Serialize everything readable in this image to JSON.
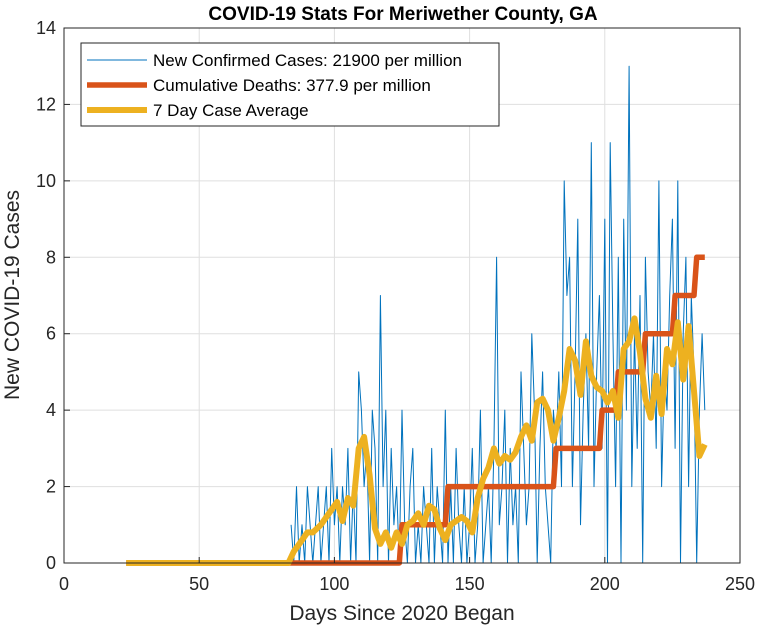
{
  "chart_data": {
    "type": "line",
    "title": "COVID-19 Stats For Meriwether County, GA",
    "xlabel": "Days Since 2020 Began",
    "ylabel": "New COVID-19 Cases",
    "xlim": [
      0,
      250
    ],
    "ylim": [
      0,
      14
    ],
    "xticks": [
      0,
      50,
      100,
      150,
      200,
      250
    ],
    "yticks": [
      0,
      2,
      4,
      6,
      8,
      10,
      12,
      14
    ],
    "grid": true,
    "legend_position": "top-left",
    "series": [
      {
        "name": "New Confirmed Cases: 21900 per million",
        "color": "#0072BD",
        "x": [
          84,
          85,
          86,
          87,
          88,
          89,
          90,
          91,
          92,
          93,
          94,
          95,
          96,
          97,
          98,
          99,
          100,
          101,
          102,
          103,
          104,
          105,
          106,
          107,
          108,
          109,
          110,
          111,
          112,
          113,
          114,
          115,
          116,
          117,
          118,
          119,
          120,
          121,
          122,
          123,
          124,
          125,
          126,
          127,
          128,
          129,
          130,
          131,
          132,
          133,
          134,
          135,
          136,
          137,
          138,
          139,
          140,
          141,
          142,
          143,
          144,
          145,
          146,
          147,
          148,
          149,
          150,
          151,
          152,
          153,
          154,
          155,
          156,
          157,
          158,
          159,
          160,
          161,
          162,
          163,
          164,
          165,
          166,
          167,
          168,
          169,
          170,
          171,
          172,
          173,
          174,
          175,
          176,
          177,
          178,
          179,
          180,
          181,
          182,
          183,
          184,
          185,
          186,
          187,
          188,
          189,
          190,
          191,
          192,
          193,
          194,
          195,
          196,
          197,
          198,
          199,
          200,
          201,
          202,
          203,
          204,
          205,
          206,
          207,
          208,
          209,
          210,
          211,
          212,
          213,
          214,
          215,
          216,
          217,
          218,
          219,
          220,
          221,
          222,
          223,
          224,
          225,
          226,
          227,
          228,
          229,
          230,
          231,
          232,
          233,
          234,
          235,
          236,
          237
        ],
        "values": [
          1,
          0,
          2,
          0,
          1,
          0,
          2,
          1,
          0,
          1,
          2,
          0,
          1,
          2,
          0,
          3,
          1,
          2,
          0,
          2,
          1,
          3,
          0,
          2,
          0,
          5,
          4,
          2,
          3,
          0,
          4,
          3,
          0,
          7,
          2,
          4,
          0,
          3,
          1,
          2,
          0,
          4,
          1,
          0,
          2,
          3,
          0,
          1,
          0,
          2,
          1,
          0,
          3,
          0,
          2,
          1,
          0,
          4,
          0,
          2,
          0,
          3,
          1,
          0,
          2,
          0,
          1,
          3,
          0,
          1,
          4,
          0,
          1,
          2,
          0,
          3,
          8,
          1,
          2,
          4,
          0,
          3,
          1,
          2,
          0,
          5,
          3,
          1,
          2,
          6,
          4,
          0,
          3,
          5,
          2,
          1,
          0,
          4,
          3,
          5,
          2,
          10,
          7,
          8,
          2,
          5,
          9,
          1,
          4,
          6,
          3,
          11,
          2,
          5,
          7,
          3,
          9,
          0,
          11,
          6,
          2,
          8,
          0,
          9,
          4,
          13,
          2,
          6,
          3,
          7,
          0,
          8,
          5,
          4,
          6,
          3,
          10,
          2,
          5,
          4,
          7,
          9,
          3,
          10,
          0,
          6,
          8,
          2,
          7,
          5,
          0,
          4,
          6,
          4
        ]
      },
      {
        "name": "Cumulative Deaths: 377.9 per million",
        "color": "#D95319",
        "x": [
          23,
          124,
          125,
          141,
          142,
          181,
          182,
          198,
          199,
          204,
          205,
          214,
          215,
          225,
          226,
          233,
          234,
          237
        ],
        "values": [
          0,
          0,
          1,
          1,
          2,
          2,
          3,
          3,
          4,
          4,
          5,
          5,
          6,
          6,
          7,
          7,
          8,
          8
        ]
      },
      {
        "name": "7 Day Case Average",
        "color": "#EDB120",
        "x": [
          23,
          83,
          85,
          88,
          90,
          92,
          95,
          97,
          99,
          101,
          103,
          105,
          107,
          109,
          111,
          113,
          115,
          117,
          119,
          121,
          123,
          125,
          127,
          129,
          131,
          133,
          135,
          137,
          139,
          141,
          143,
          145,
          147,
          149,
          151,
          153,
          155,
          157,
          159,
          161,
          163,
          165,
          167,
          169,
          171,
          173,
          175,
          177,
          179,
          181,
          183,
          185,
          187,
          189,
          191,
          193,
          195,
          197,
          199,
          201,
          203,
          205,
          207,
          209,
          211,
          213,
          215,
          217,
          219,
          221,
          223,
          225,
          227,
          229,
          231,
          233,
          235,
          237
        ],
        "values": [
          0,
          0,
          0.3,
          0.6,
          0.8,
          0.8,
          1.0,
          1.2,
          1.4,
          1.6,
          1.1,
          1.7,
          1.5,
          3.0,
          3.3,
          2.3,
          0.9,
          0.5,
          0.8,
          0.4,
          0.8,
          0.5,
          1.0,
          1.1,
          1.3,
          1.0,
          1.5,
          1.4,
          0.9,
          0.6,
          1.0,
          1.1,
          1.2,
          1.1,
          0.8,
          1.7,
          2.2,
          2.5,
          3.0,
          2.6,
          2.8,
          2.7,
          2.9,
          3.3,
          3.6,
          3.2,
          4.2,
          4.3,
          4.0,
          3.2,
          3.8,
          4.5,
          5.6,
          5.3,
          4.4,
          5.8,
          4.9,
          4.6,
          4.5,
          4.2,
          4.5,
          3.8,
          5.6,
          5.8,
          6.4,
          5.5,
          4.3,
          3.8,
          4.9,
          3.9,
          5.6,
          5.2,
          6.3,
          4.8,
          6.2,
          4.5,
          2.8,
          3.1
        ]
      }
    ]
  }
}
